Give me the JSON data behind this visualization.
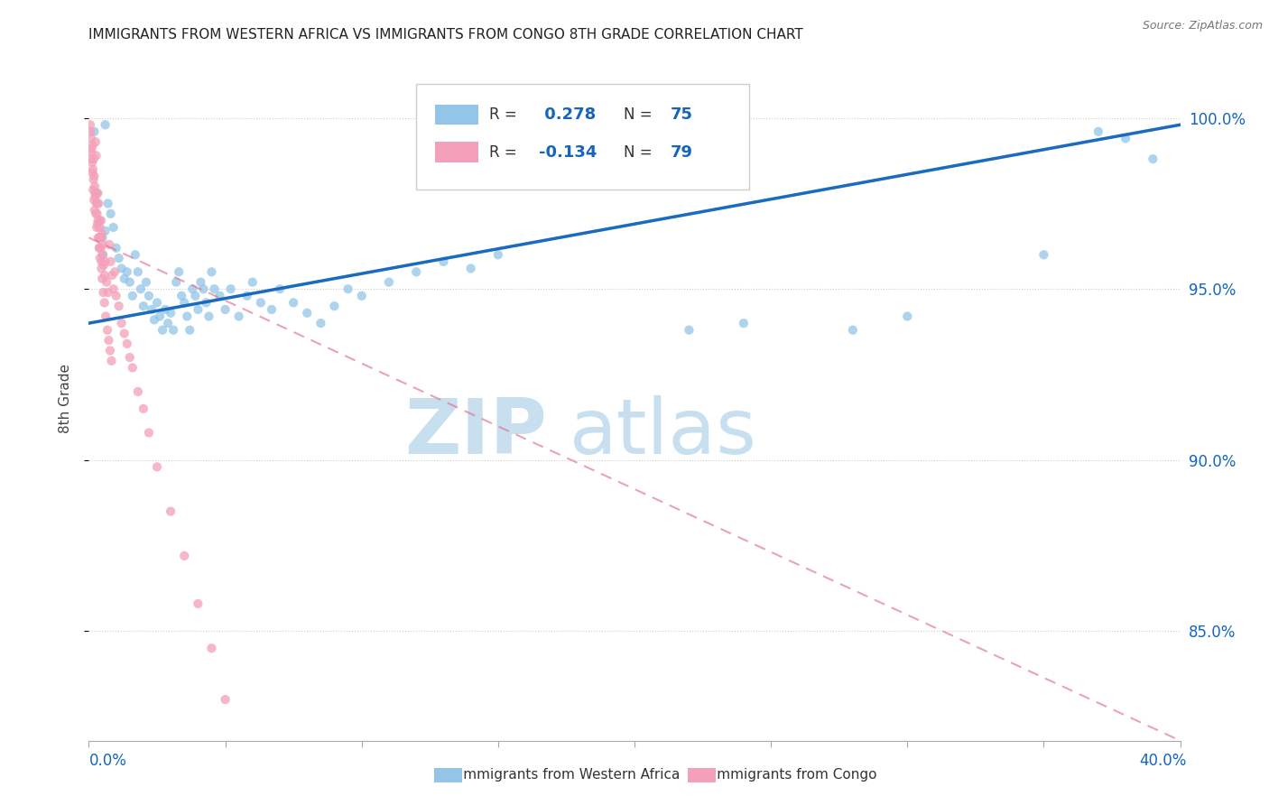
{
  "title": "IMMIGRANTS FROM WESTERN AFRICA VS IMMIGRANTS FROM CONGO 8TH GRADE CORRELATION CHART",
  "source": "Source: ZipAtlas.com",
  "ylabel": "8th Grade",
  "y_tick_labels": [
    "100.0%",
    "95.0%",
    "90.0%",
    "85.0%"
  ],
  "y_tick_values": [
    1.0,
    0.95,
    0.9,
    0.85
  ],
  "x_range": [
    0.0,
    40.0
  ],
  "y_range": [
    0.818,
    1.018
  ],
  "R_blue": 0.278,
  "N_blue": 75,
  "R_pink": -0.134,
  "N_pink": 79,
  "blue_color": "#92C5E8",
  "pink_color": "#F4A0B8",
  "trend_blue": "#1A6BBF",
  "trend_pink": "#E07090",
  "watermark_zip_color": "#C8DFF0",
  "watermark_atlas_color": "#C8DFF0",
  "blue_scatter_x": [
    0.3,
    0.4,
    0.5,
    0.5,
    0.6,
    0.7,
    0.8,
    0.9,
    1.0,
    1.1,
    1.2,
    1.3,
    1.4,
    1.5,
    1.6,
    1.7,
    1.8,
    1.9,
    2.0,
    2.1,
    2.2,
    2.3,
    2.4,
    2.5,
    2.6,
    2.7,
    2.8,
    2.9,
    3.0,
    3.1,
    3.2,
    3.3,
    3.4,
    3.5,
    3.6,
    3.7,
    3.8,
    3.9,
    4.0,
    4.1,
    4.2,
    4.3,
    4.4,
    4.5,
    4.6,
    4.8,
    5.0,
    5.2,
    5.5,
    5.8,
    6.0,
    6.3,
    6.7,
    7.0,
    7.5,
    8.0,
    8.5,
    9.0,
    9.5,
    10.0,
    11.0,
    12.0,
    13.0,
    14.0,
    15.0,
    22.0,
    24.0,
    28.0,
    30.0,
    35.0,
    37.0,
    38.0,
    39.0,
    0.2,
    0.6
  ],
  "blue_scatter_y": [
    0.978,
    0.97,
    0.965,
    0.96,
    0.967,
    0.975,
    0.972,
    0.968,
    0.962,
    0.959,
    0.956,
    0.953,
    0.955,
    0.952,
    0.948,
    0.96,
    0.955,
    0.95,
    0.945,
    0.952,
    0.948,
    0.944,
    0.941,
    0.946,
    0.942,
    0.938,
    0.944,
    0.94,
    0.943,
    0.938,
    0.952,
    0.955,
    0.948,
    0.946,
    0.942,
    0.938,
    0.95,
    0.948,
    0.944,
    0.952,
    0.95,
    0.946,
    0.942,
    0.955,
    0.95,
    0.948,
    0.944,
    0.95,
    0.942,
    0.948,
    0.952,
    0.946,
    0.944,
    0.95,
    0.946,
    0.943,
    0.94,
    0.945,
    0.95,
    0.948,
    0.952,
    0.955,
    0.958,
    0.956,
    0.96,
    0.938,
    0.94,
    0.938,
    0.942,
    0.96,
    0.996,
    0.994,
    0.988,
    0.996,
    0.998
  ],
  "pink_scatter_x": [
    0.05,
    0.08,
    0.1,
    0.12,
    0.14,
    0.15,
    0.17,
    0.18,
    0.2,
    0.22,
    0.24,
    0.25,
    0.27,
    0.28,
    0.3,
    0.32,
    0.33,
    0.35,
    0.36,
    0.38,
    0.4,
    0.42,
    0.44,
    0.45,
    0.47,
    0.48,
    0.5,
    0.52,
    0.55,
    0.58,
    0.6,
    0.65,
    0.7,
    0.75,
    0.8,
    0.85,
    0.9,
    0.95,
    1.0,
    1.1,
    1.2,
    1.3,
    1.4,
    1.5,
    1.6,
    1.8,
    2.0,
    2.2,
    2.5,
    3.0,
    3.5,
    4.0,
    4.5,
    5.0,
    0.06,
    0.09,
    0.11,
    0.13,
    0.16,
    0.19,
    0.21,
    0.23,
    0.26,
    0.29,
    0.31,
    0.34,
    0.37,
    0.39,
    0.41,
    0.43,
    0.46,
    0.49,
    0.53,
    0.57,
    0.62,
    0.68,
    0.73,
    0.78,
    0.83
  ],
  "pink_scatter_y": [
    0.998,
    0.994,
    0.99,
    0.987,
    0.992,
    0.985,
    0.982,
    0.988,
    0.983,
    0.98,
    0.977,
    0.993,
    0.989,
    0.975,
    0.972,
    0.969,
    0.978,
    0.965,
    0.975,
    0.962,
    0.968,
    0.965,
    0.962,
    0.97,
    0.958,
    0.966,
    0.963,
    0.96,
    0.957,
    0.954,
    0.958,
    0.952,
    0.949,
    0.963,
    0.958,
    0.954,
    0.95,
    0.955,
    0.948,
    0.945,
    0.94,
    0.937,
    0.934,
    0.93,
    0.927,
    0.92,
    0.915,
    0.908,
    0.898,
    0.885,
    0.872,
    0.858,
    0.845,
    0.83,
    0.996,
    0.991,
    0.988,
    0.984,
    0.979,
    0.976,
    0.973,
    0.978,
    0.972,
    0.968,
    0.975,
    0.97,
    0.965,
    0.962,
    0.959,
    0.965,
    0.956,
    0.953,
    0.949,
    0.946,
    0.942,
    0.938,
    0.935,
    0.932,
    0.929
  ],
  "blue_trend_x0": 0.0,
  "blue_trend_y0": 0.94,
  "blue_trend_x1": 40.0,
  "blue_trend_y1": 0.998,
  "pink_trend_x0": 0.0,
  "pink_trend_y0": 0.965,
  "pink_trend_x1": 40.0,
  "pink_trend_y1": 0.818
}
